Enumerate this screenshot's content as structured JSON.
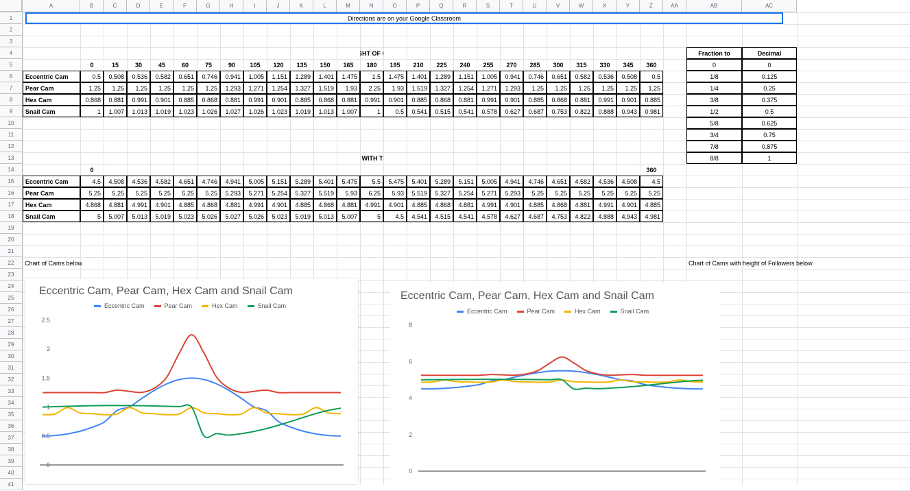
{
  "spreadsheet": {
    "columns": [
      "A",
      "B",
      "C",
      "D",
      "E",
      "F",
      "G",
      "H",
      "I",
      "J",
      "K",
      "L",
      "M",
      "N",
      "O",
      "P",
      "Q",
      "R",
      "S",
      "T",
      "U",
      "V",
      "W",
      "X",
      "Y",
      "Z",
      "AA",
      "AB",
      "AC"
    ],
    "rows": [
      "1",
      "2",
      "3",
      "4",
      "5",
      "6",
      "7",
      "8",
      "9",
      "10",
      "11",
      "12",
      "13",
      "14",
      "15",
      "16",
      "17",
      "18",
      "19",
      "20",
      "21",
      "22",
      "23",
      "24",
      "25",
      "26",
      "27",
      "28",
      "29",
      "30",
      "31",
      "32",
      "33",
      "34",
      "35",
      "36",
      "37",
      "38",
      "39",
      "40",
      "41"
    ],
    "directions": "Directions are on your Google Classroom",
    "table1": {
      "title": "HEIGHT OF CAM",
      "angles": [
        "0",
        "15",
        "30",
        "45",
        "60",
        "75",
        "90",
        "105",
        "120",
        "135",
        "150",
        "165",
        "180",
        "195",
        "210",
        "225",
        "240",
        "255",
        "270",
        "285",
        "300",
        "315",
        "330",
        "345",
        "360"
      ],
      "rows": [
        {
          "name": "Eccentric Cam",
          "values": [
            "0.5",
            "0.508",
            "0.536",
            "0.582",
            "0.651",
            "0.746",
            "0.941",
            "1.005",
            "1.151",
            "1.289",
            "1.401",
            "1.475",
            "1.5",
            "1.475",
            "1.401",
            "1.289",
            "1.151",
            "1.005",
            "0.941",
            "0.746",
            "0.651",
            "0.582",
            "0.536",
            "0.508",
            "0.5"
          ]
        },
        {
          "name": "Pear Cam",
          "values": [
            "1.25",
            "1.25",
            "1.25",
            "1.25",
            "1.25",
            "1.25",
            "1.293",
            "1.271",
            "1.254",
            "1.327",
            "1.519",
            "1.93",
            "2.25",
            "1.93",
            "1.519",
            "1.327",
            "1.254",
            "1.271",
            "1.293",
            "1.25",
            "1.25",
            "1.25",
            "1.25",
            "1.25",
            "1.25"
          ]
        },
        {
          "name": "Hex Cam",
          "values": [
            "0.868",
            "0.881",
            "0.991",
            "0.901",
            "0.885",
            "0.868",
            "0.881",
            "0.991",
            "0.901",
            "0.885",
            "0.868",
            "0.881",
            "0.991",
            "0.901",
            "0.885",
            "0.868",
            "0.881",
            "0.991",
            "0.901",
            "0.885",
            "0.868",
            "0.881",
            "0.991",
            "0.901",
            "0.885"
          ]
        },
        {
          "name": "Snail Cam",
          "values": [
            "1",
            "1.007",
            "1.013",
            "1.019",
            "1.023",
            "1.026",
            "1.027",
            "1.026",
            "1.023",
            "1.019",
            "1.013",
            "1.007",
            "1",
            "0.5",
            "0.541",
            "0.515",
            "0.541",
            "0.578",
            "0.627",
            "0.687",
            "0.753",
            "0.822",
            "0.888",
            "0.943",
            "0.981"
          ]
        }
      ]
    },
    "table2": {
      "title": "HEIGHT OF CAM WITH THE FOLLOWERS",
      "header_first": "0",
      "header_last": "360",
      "rows": [
        {
          "name": "Eccentric Cam",
          "values": [
            "4.5",
            "4.508",
            "4.536",
            "4.582",
            "4.651",
            "4.746",
            "4.941",
            "5.005",
            "5.151",
            "5.289",
            "5.401",
            "5.475",
            "5.5",
            "5.475",
            "5.401",
            "5.289",
            "5.151",
            "5.005",
            "4.941",
            "4.746",
            "4.651",
            "4.582",
            "4.536",
            "4.508",
            "4.5"
          ]
        },
        {
          "name": "Pear Cam",
          "values": [
            "5.25",
            "5.25",
            "5.25",
            "5.25",
            "5.25",
            "5.25",
            "5.293",
            "5.271",
            "5.254",
            "5.327",
            "5.519",
            "5.93",
            "6.25",
            "5.93",
            "5.519",
            "5.327",
            "5.254",
            "5.271",
            "5.293",
            "5.25",
            "5.25",
            "5.25",
            "5.25",
            "5.25",
            "5.25"
          ]
        },
        {
          "name": "Hex Cam",
          "values": [
            "4.868",
            "4.881",
            "4.991",
            "4.901",
            "4.885",
            "4.868",
            "4.881",
            "4.991",
            "4.901",
            "4.885",
            "4.868",
            "4.881",
            "4.991",
            "4.901",
            "4.885",
            "4.868",
            "4.881",
            "4.991",
            "4.901",
            "4.885",
            "4.868",
            "4.881",
            "4.991",
            "4.901",
            "4.885"
          ]
        },
        {
          "name": "Snail Cam",
          "values": [
            "5",
            "5.007",
            "5.013",
            "5.019",
            "5.023",
            "5.026",
            "5.027",
            "5.026",
            "5.023",
            "5.019",
            "5.013",
            "5.007",
            "5",
            "4.5",
            "4.541",
            "4.515",
            "4.541",
            "4.578",
            "4.627",
            "4.687",
            "4.753",
            "4.822",
            "4.888",
            "4.943",
            "4.981"
          ]
        }
      ]
    },
    "fractions": {
      "header_fraction": "Fraction to",
      "header_decimal": "Decimal",
      "rows": [
        {
          "f": "0",
          "d": "0"
        },
        {
          "f": "1/8",
          "d": "0.125"
        },
        {
          "f": "1/4",
          "d": "0.25"
        },
        {
          "f": "3/8",
          "d": "0.375"
        },
        {
          "f": "1/2",
          "d": "0.5"
        },
        {
          "f": "5/8",
          "d": "0.625"
        },
        {
          "f": "3/4",
          "d": "0.75"
        },
        {
          "f": "7/8",
          "d": "0.875"
        },
        {
          "f": "8/8",
          "d": "1"
        }
      ]
    },
    "note_left": "Chart of Cams below",
    "note_right": "Chart of Cams with height of Followers below"
  },
  "colors": {
    "eccentric": "#4285f4",
    "pear": "#db4437",
    "hex": "#f4b400",
    "snail": "#0f9d58"
  },
  "chart_data": [
    {
      "type": "line",
      "title": "Eccentric Cam, Pear Cam, Hex Cam and Snail Cam",
      "legend_position": "top",
      "ylim": [
        0,
        2.5
      ],
      "yticks": [
        "0",
        "0.5",
        "1",
        "1.5",
        "2",
        "2.5"
      ],
      "grid": false,
      "series": [
        {
          "name": "Eccentric Cam",
          "values": [
            0.5,
            0.508,
            0.536,
            0.582,
            0.651,
            0.746,
            0.941,
            1.005,
            1.151,
            1.289,
            1.401,
            1.475,
            1.5,
            1.475,
            1.401,
            1.289,
            1.151,
            1.005,
            0.941,
            0.746,
            0.651,
            0.582,
            0.536,
            0.508,
            0.5
          ]
        },
        {
          "name": "Pear Cam",
          "values": [
            1.25,
            1.25,
            1.25,
            1.25,
            1.25,
            1.25,
            1.293,
            1.271,
            1.254,
            1.327,
            1.519,
            1.93,
            2.25,
            1.93,
            1.519,
            1.327,
            1.254,
            1.271,
            1.293,
            1.25,
            1.25,
            1.25,
            1.25,
            1.25,
            1.25
          ]
        },
        {
          "name": "Hex Cam",
          "values": [
            0.868,
            0.881,
            0.991,
            0.901,
            0.885,
            0.868,
            0.881,
            0.991,
            0.901,
            0.885,
            0.868,
            0.881,
            0.991,
            0.901,
            0.885,
            0.868,
            0.881,
            0.991,
            0.901,
            0.885,
            0.868,
            0.881,
            0.991,
            0.901,
            0.885
          ]
        },
        {
          "name": "Snail Cam",
          "values": [
            1,
            1.007,
            1.013,
            1.019,
            1.023,
            1.026,
            1.027,
            1.026,
            1.023,
            1.019,
            1.013,
            1.007,
            1,
            0.5,
            0.541,
            0.515,
            0.541,
            0.578,
            0.627,
            0.687,
            0.753,
            0.822,
            0.888,
            0.943,
            0.981
          ]
        }
      ]
    },
    {
      "type": "line",
      "title": "Eccentric Cam, Pear Cam, Hex Cam and Snail Cam",
      "legend_position": "top",
      "ylim": [
        0,
        8
      ],
      "yticks": [
        "0",
        "2",
        "4",
        "6",
        "8"
      ],
      "grid": false,
      "series": [
        {
          "name": "Eccentric Cam",
          "values": [
            4.5,
            4.508,
            4.536,
            4.582,
            4.651,
            4.746,
            4.941,
            5.005,
            5.151,
            5.289,
            5.401,
            5.475,
            5.5,
            5.475,
            5.401,
            5.289,
            5.151,
            5.005,
            4.941,
            4.746,
            4.651,
            4.582,
            4.536,
            4.508,
            4.5
          ]
        },
        {
          "name": "Pear Cam",
          "values": [
            5.25,
            5.25,
            5.25,
            5.25,
            5.25,
            5.25,
            5.293,
            5.271,
            5.254,
            5.327,
            5.519,
            5.93,
            6.25,
            5.93,
            5.519,
            5.327,
            5.254,
            5.271,
            5.293,
            5.25,
            5.25,
            5.25,
            5.25,
            5.25,
            5.25
          ]
        },
        {
          "name": "Hex Cam",
          "values": [
            4.868,
            4.881,
            4.991,
            4.901,
            4.885,
            4.868,
            4.881,
            4.991,
            4.901,
            4.885,
            4.868,
            4.881,
            4.991,
            4.901,
            4.885,
            4.868,
            4.881,
            4.991,
            4.901,
            4.885,
            4.868,
            4.881,
            4.991,
            4.901,
            4.885
          ]
        },
        {
          "name": "Snail Cam",
          "values": [
            5,
            5.007,
            5.013,
            5.019,
            5.023,
            5.026,
            5.027,
            5.026,
            5.023,
            5.019,
            5.013,
            5.007,
            5,
            4.5,
            4.541,
            4.515,
            4.541,
            4.578,
            4.627,
            4.687,
            4.753,
            4.822,
            4.888,
            4.943,
            4.981
          ]
        }
      ]
    }
  ]
}
